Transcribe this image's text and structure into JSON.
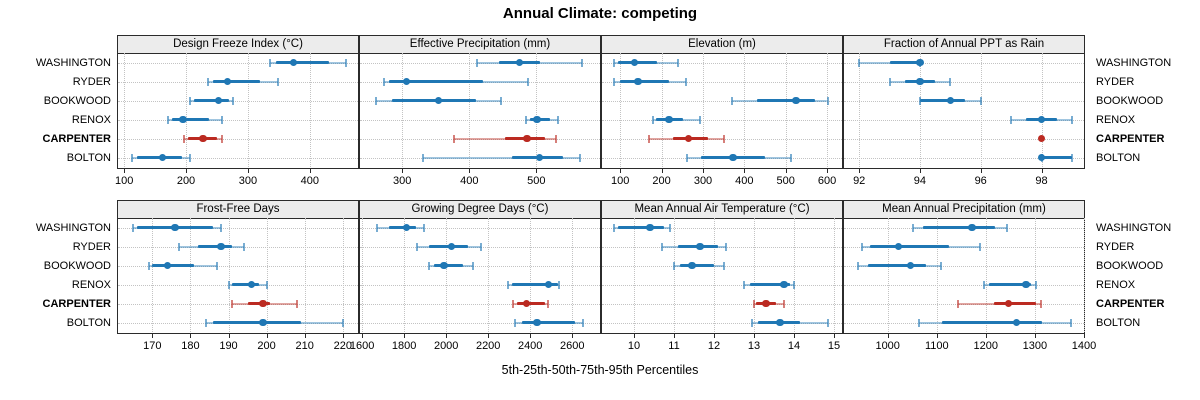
{
  "title": "Annual Climate: competing",
  "caption": "5th-25th-50th-75th-95th Percentiles",
  "colors": {
    "series_blue": "#1f77b4",
    "highlight_red": "#bb2a21",
    "strip_background": "#ececec",
    "frame": "#2b2b2b",
    "grid": "#c3c3c3"
  },
  "chart_data": {
    "type": "dotplot-interval",
    "layout": "2 rows x 4 cols",
    "percentiles": [
      "5th",
      "25th",
      "50th",
      "75th",
      "95th"
    ],
    "stations": [
      "WASHINGTON",
      "RYDER",
      "BOOKWOOD",
      "RENOX",
      "CARPENTER",
      "BOLTON"
    ],
    "highlighted_station": "CARPENTER",
    "legend_position": "none",
    "grid": "dotted",
    "panels": [
      {
        "title": "Design Freeze Index (°C)",
        "row": 0,
        "col": 0,
        "xlim": [
          90,
          478
        ],
        "ticks": [
          100,
          200,
          300,
          400
        ],
        "values": {
          "WASHINGTON": [
            336,
            345,
            374,
            432,
            458
          ],
          "RYDER": [
            236,
            244,
            267,
            320,
            349
          ],
          "BOOKWOOD": [
            206,
            212,
            252,
            270,
            276
          ],
          "RENOX": [
            171,
            177,
            195,
            237,
            258
          ],
          "CARPENTER": [
            196,
            203,
            227,
            250,
            258
          ],
          "BOLTON": [
            113,
            121,
            162,
            194,
            206
          ]
        }
      },
      {
        "title": "Effective Precipitation (mm)",
        "row": 0,
        "col": 1,
        "xlim": [
          237,
          595
        ],
        "ticks": [
          300,
          400,
          500
        ],
        "values": {
          "WASHINGTON": [
            411,
            445,
            475,
            505,
            568
          ],
          "RYDER": [
            272,
            280,
            306,
            420,
            487
          ],
          "BOOKWOOD": [
            261,
            285,
            354,
            410,
            447
          ],
          "RENOX": [
            484,
            490,
            501,
            520,
            533
          ],
          "CARPENTER": [
            377,
            453,
            486,
            513,
            529
          ],
          "BOLTON": [
            331,
            463,
            505,
            540,
            565
          ]
        }
      },
      {
        "title": "Elevation (m)",
        "row": 0,
        "col": 2,
        "xlim": [
          56,
          636
        ],
        "ticks": [
          100,
          200,
          300,
          400,
          500,
          600
        ],
        "values": {
          "WASHINGTON": [
            85,
            95,
            135,
            190,
            240
          ],
          "RYDER": [
            85,
            100,
            143,
            219,
            259
          ],
          "BOOKWOOD": [
            370,
            430,
            525,
            570,
            601
          ],
          "RENOX": [
            179,
            186,
            218,
            252,
            293
          ],
          "CARPENTER": [
            169,
            227,
            265,
            312,
            350
          ],
          "BOLTON": [
            262,
            296,
            372,
            449,
            513
          ]
        }
      },
      {
        "title": "Fraction of Annual PPT as Rain",
        "row": 0,
        "col": 3,
        "xlim": [
          91.5,
          99.4
        ],
        "ticks": [
          92,
          94,
          96,
          98
        ],
        "values": {
          "WASHINGTON": [
            92,
            93,
            94,
            94,
            94
          ],
          "RYDER": [
            93,
            93.5,
            94,
            94.5,
            95
          ],
          "BOOKWOOD": [
            94,
            94,
            95,
            95.5,
            96
          ],
          "RENOX": [
            97,
            97.5,
            98,
            98.5,
            99
          ],
          "CARPENTER": [
            98,
            98,
            98,
            98,
            98
          ],
          "BOLTON": [
            98,
            98,
            98,
            99,
            99
          ]
        }
      },
      {
        "title": "Frost-Free Days",
        "row": 1,
        "col": 0,
        "xlim": [
          161,
          224
        ],
        "ticks": [
          170,
          180,
          190,
          200,
          210,
          220
        ],
        "values": {
          "WASHINGTON": [
            165,
            166,
            176,
            186,
            188
          ],
          "RYDER": [
            177,
            182,
            188,
            191,
            194
          ],
          "BOOKWOOD": [
            169,
            170,
            174,
            181,
            187
          ],
          "RENOX": [
            190,
            191,
            196,
            198,
            200
          ],
          "CARPENTER": [
            191,
            195,
            199,
            201,
            208
          ],
          "BOLTON": [
            184,
            186,
            199,
            209,
            220
          ]
        }
      },
      {
        "title": "Growing Degree Days (°C)",
        "row": 1,
        "col": 1,
        "xlim": [
          1590,
          2732
        ],
        "ticks": [
          1600,
          1800,
          2000,
          2200,
          2400,
          2600
        ],
        "values": {
          "WASHINGTON": [
            1670,
            1727,
            1812,
            1859,
            1894
          ],
          "RYDER": [
            1859,
            1920,
            2025,
            2106,
            2167
          ],
          "BOOKWOOD": [
            1917,
            1940,
            1990,
            2082,
            2129
          ],
          "RENOX": [
            2295,
            2314,
            2487,
            2530,
            2538
          ],
          "CARPENTER": [
            2319,
            2337,
            2383,
            2468,
            2484
          ],
          "BOLTON": [
            2325,
            2360,
            2433,
            2615,
            2653
          ]
        }
      },
      {
        "title": "Mean Annual Air Temperature (°C)",
        "row": 1,
        "col": 2,
        "xlim": [
          9.2,
          15.2
        ],
        "ticks": [
          10,
          11,
          12,
          13,
          14,
          15
        ],
        "values": {
          "WASHINGTON": [
            9.5,
            9.6,
            10.4,
            10.75,
            10.9
          ],
          "RYDER": [
            10.7,
            11.1,
            11.65,
            12.1,
            12.3
          ],
          "BOOKWOOD": [
            11.0,
            11.15,
            11.45,
            12.0,
            12.25
          ],
          "RENOX": [
            12.75,
            12.9,
            13.75,
            13.9,
            14.0
          ],
          "CARPENTER": [
            13.0,
            13.05,
            13.3,
            13.55,
            13.75
          ],
          "BOLTON": [
            12.95,
            13.1,
            13.65,
            14.15,
            14.85
          ]
        }
      },
      {
        "title": "Mean Annual Precipitation (mm)",
        "row": 1,
        "col": 3,
        "xlim": [
          911,
          1400
        ],
        "ticks": [
          1000,
          1100,
          1200,
          1300,
          1400
        ],
        "values": {
          "WASHINGTON": [
            1052,
            1071,
            1172,
            1219,
            1244
          ],
          "RYDER": [
            947,
            963,
            1022,
            1125,
            1189
          ],
          "BOOKWOOD": [
            939,
            960,
            1046,
            1078,
            1109
          ],
          "RENOX": [
            1196,
            1206,
            1282,
            1293,
            1303
          ],
          "CARPENTER": [
            1143,
            1216,
            1246,
            1303,
            1312
          ],
          "BOLTON": [
            1064,
            1111,
            1262,
            1314,
            1374
          ]
        }
      }
    ]
  }
}
